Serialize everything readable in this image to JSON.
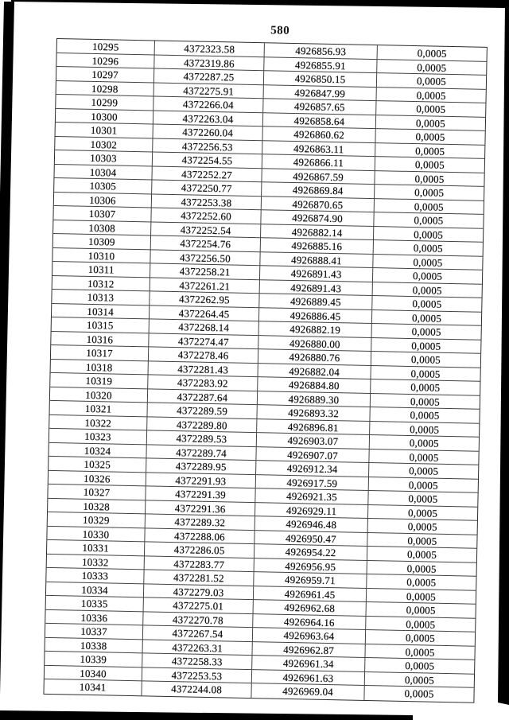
{
  "page": {
    "number": "580"
  },
  "colors": {
    "ink": "#111111",
    "table_line": "#424242",
    "scan_edge": "#000000",
    "paper": "#ffffff"
  },
  "table": {
    "rows": [
      [
        "10295",
        "4372323.58",
        "4926856.93",
        "0,0005"
      ],
      [
        "10296",
        "4372319.86",
        "4926855.91",
        "0,0005"
      ],
      [
        "10297",
        "4372287.25",
        "4926850.15",
        "0,0005"
      ],
      [
        "10298",
        "4372275.91",
        "4926847.99",
        "0,0005"
      ],
      [
        "10299",
        "4372266.04",
        "4926857.65",
        "0,0005"
      ],
      [
        "10300",
        "4372263.04",
        "4926858.64",
        "0,0005"
      ],
      [
        "10301",
        "4372260.04",
        "4926860.62",
        "0,0005"
      ],
      [
        "10302",
        "4372256.53",
        "4926863.11",
        "0,0005"
      ],
      [
        "10303",
        "4372254.55",
        "4926866.11",
        "0,0005"
      ],
      [
        "10304",
        "4372252.27",
        "4926867.59",
        "0,0005"
      ],
      [
        "10305",
        "4372250.77",
        "4926869.84",
        "0,0005"
      ],
      [
        "10306",
        "4372253.38",
        "4926870.65",
        "0,0005"
      ],
      [
        "10307",
        "4372252.60",
        "4926874.90",
        "0,0005"
      ],
      [
        "10308",
        "4372252.54",
        "4926882.14",
        "0,0005"
      ],
      [
        "10309",
        "4372254.76",
        "4926885.16",
        "0,0005"
      ],
      [
        "10310",
        "4372256.50",
        "4926888.41",
        "0,0005"
      ],
      [
        "10311",
        "4372258.21",
        "4926891.43",
        "0,0005"
      ],
      [
        "10312",
        "4372261.21",
        "4926891.43",
        "0,0005"
      ],
      [
        "10313",
        "4372262.95",
        "4926889.45",
        "0,0005"
      ],
      [
        "10314",
        "4372264.45",
        "4926886.45",
        "0,0005"
      ],
      [
        "10315",
        "4372268.14",
        "4926882.19",
        "0,0005"
      ],
      [
        "10316",
        "4372274.47",
        "4926880.00",
        "0,0005"
      ],
      [
        "10317",
        "4372278.46",
        "4926880.76",
        "0,0005"
      ],
      [
        "10318",
        "4372281.43",
        "4926882.04",
        "0,0005"
      ],
      [
        "10319",
        "4372283.92",
        "4926884.80",
        "0,0005"
      ],
      [
        "10320",
        "4372287.64",
        "4926889.30",
        "0,0005"
      ],
      [
        "10321",
        "4372289.59",
        "4926893.32",
        "0,0005"
      ],
      [
        "10322",
        "4372289.80",
        "4926896.81",
        "0,0005"
      ],
      [
        "10323",
        "4372289.53",
        "4926903.07",
        "0,0005"
      ],
      [
        "10324",
        "4372289.74",
        "4926907.07",
        "0,0005"
      ],
      [
        "10325",
        "4372289.95",
        "4926912.34",
        "0,0005"
      ],
      [
        "10326",
        "4372291.93",
        "4926917.59",
        "0,0005"
      ],
      [
        "10327",
        "4372291.39",
        "4926921.35",
        "0,0005"
      ],
      [
        "10328",
        "4372291.36",
        "4926929.11",
        "0,0005"
      ],
      [
        "10329",
        "4372289.32",
        "4926946.48",
        "0,0005"
      ],
      [
        "10330",
        "4372288.06",
        "4926950.47",
        "0,0005"
      ],
      [
        "10331",
        "4372286.05",
        "4926954.22",
        "0,0005"
      ],
      [
        "10332",
        "4372283.77",
        "4926956.95",
        "0,0005"
      ],
      [
        "10333",
        "4372281.52",
        "4926959.71",
        "0,0005"
      ],
      [
        "10334",
        "4372279.03",
        "4926961.45",
        "0,0005"
      ],
      [
        "10335",
        "4372275.01",
        "4926962.68",
        "0,0005"
      ],
      [
        "10336",
        "4372270.78",
        "4926964.16",
        "0,0005"
      ],
      [
        "10337",
        "4372267.54",
        "4926963.64",
        "0,0005"
      ],
      [
        "10338",
        "4372263.31",
        "4926962.87",
        "0,0005"
      ],
      [
        "10339",
        "4372258.33",
        "4926961.34",
        "0,0005"
      ],
      [
        "10340",
        "4372253.53",
        "4926961.63",
        "0,0005"
      ],
      [
        "10341",
        "4372244.08",
        "4926969.04",
        "0,0005"
      ]
    ]
  }
}
